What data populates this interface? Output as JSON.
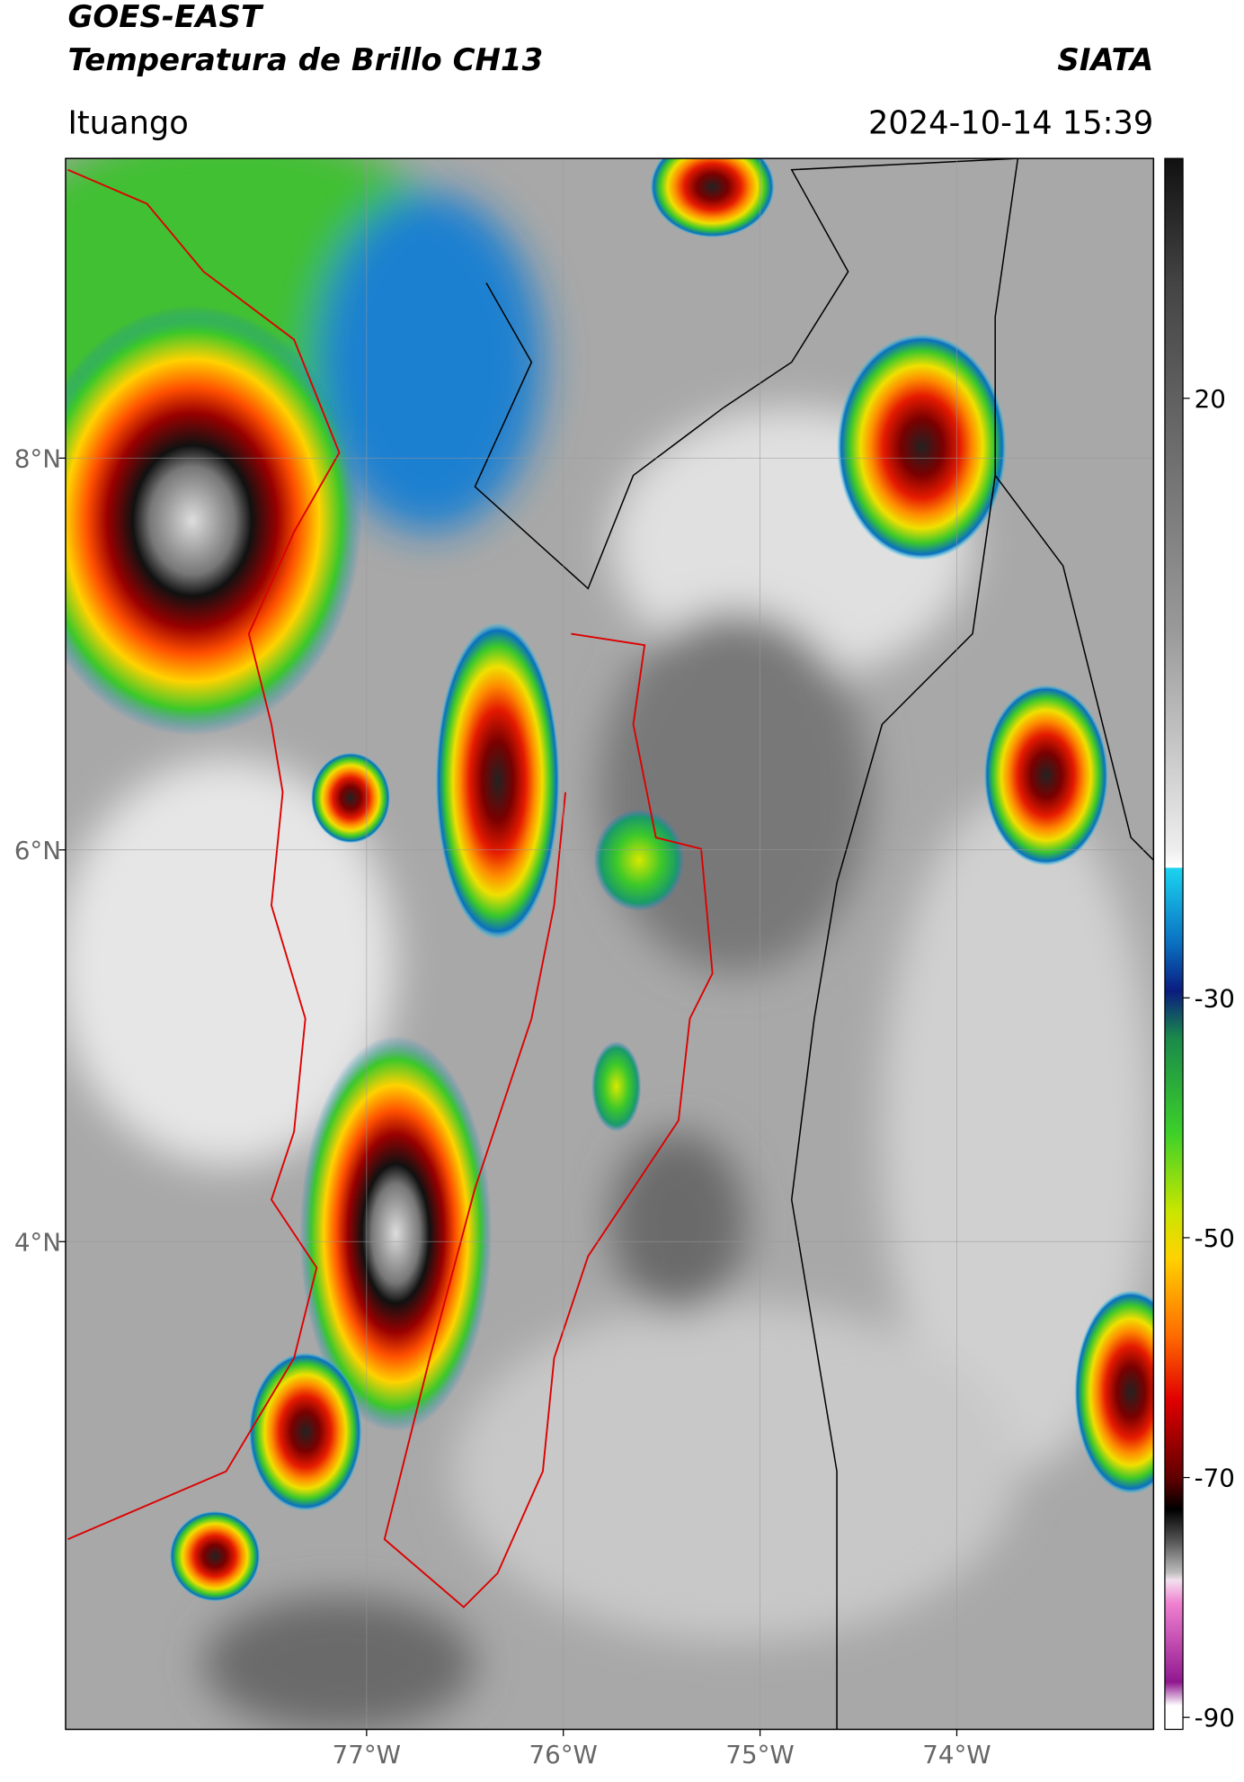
{
  "header": {
    "title": "GOES-EAST",
    "subtitle": "Temperatura de Brillo CH13",
    "source": "SIATA",
    "region": "Ituango",
    "datetime": "2024-10-14 15:39"
  },
  "map": {
    "xlim": [
      -78.53,
      -73.0
    ],
    "ylim": [
      1.51,
      9.53
    ],
    "xticks": [
      {
        "value": -77,
        "label": "77°W"
      },
      {
        "value": -76,
        "label": "76°W"
      },
      {
        "value": -75,
        "label": "75°W"
      },
      {
        "value": -74,
        "label": "74°W"
      }
    ],
    "yticks": [
      {
        "value": 8,
        "label": "8°N"
      },
      {
        "value": 6,
        "label": "6°N"
      },
      {
        "value": 4,
        "label": "4°N"
      }
    ],
    "grid": true
  },
  "colorbar": {
    "lim": [
      -91,
      40
    ],
    "ticks": [
      20,
      -30,
      -50,
      -70,
      -90
    ]
  }
}
